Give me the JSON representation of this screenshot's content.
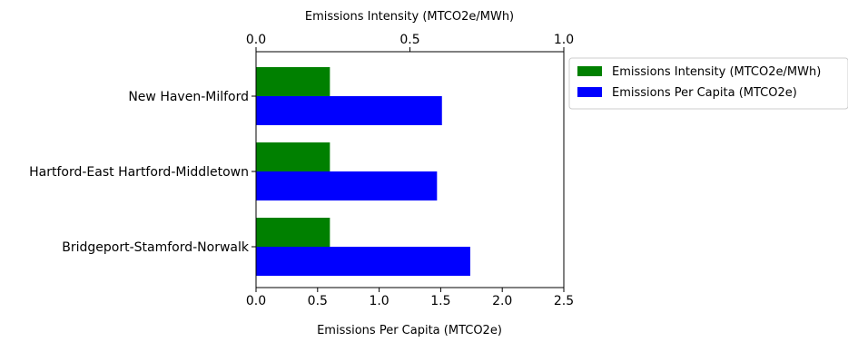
{
  "chart_data": {
    "type": "bar",
    "orientation": "horizontal",
    "categories": [
      "New Haven-Milford",
      "Hartford-East Hartford-Middletown",
      "Bridgeport-Stamford-Norwalk"
    ],
    "series": [
      {
        "name": "Emissions Intensity (MTCO2e/MWh)",
        "axis": "top",
        "color": "#008000",
        "values": [
          0.24,
          0.24,
          0.24
        ]
      },
      {
        "name": "Emissions Per Capita (MTCO2e)",
        "axis": "bottom",
        "color": "#0000ff",
        "values": [
          1.51,
          1.47,
          1.74
        ]
      }
    ],
    "top_axis": {
      "label": "Emissions Intensity (MTCO2e/MWh)",
      "range": [
        0,
        1.0
      ],
      "ticks": [
        "0.0",
        "0.5",
        "1.0"
      ]
    },
    "bottom_axis": {
      "label": "Emissions Per Capita (MTCO2e)",
      "range": [
        0,
        2.5
      ],
      "ticks": [
        "0.0",
        "0.5",
        "1.0",
        "1.5",
        "2.0",
        "2.5"
      ]
    },
    "legend": {
      "position": "outside-right-top",
      "entries": [
        "Emissions Intensity (MTCO2e/MWh)",
        "Emissions Per Capita (MTCO2e)"
      ]
    },
    "grid": false
  }
}
